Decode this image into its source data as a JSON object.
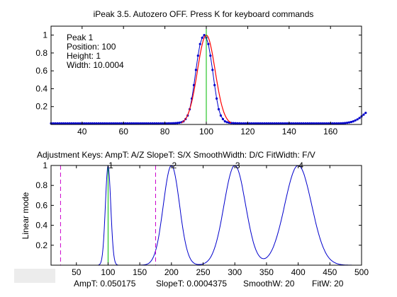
{
  "chart_data": [
    {
      "type": "scatter",
      "title": "iPeak 3.5. Autozero OFF. Press K for keyboard commands",
      "info": {
        "peak": "Peak 1",
        "position": "Position: 100",
        "height": "Height: 1",
        "width": "Width: 10.0004"
      },
      "xlim": [
        25,
        175
      ],
      "ylim": [
        0,
        1.1
      ],
      "xticks": [
        "40",
        "60",
        "80",
        "100",
        "120",
        "140",
        "160"
      ],
      "yticks": [
        "0.2",
        "0.4",
        "0.6",
        "0.8",
        "1"
      ],
      "grid": false,
      "peak_marker_x": 100,
      "fit_center": 100,
      "fit_width": 10,
      "series": [
        {
          "label_color": "#0000cc",
          "style": "dotted-line",
          "x_start": 25,
          "x_step": 1,
          "values": [
            0.012,
            0.012,
            0.012,
            0.012,
            0.012,
            0.012,
            0.012,
            0.012,
            0.012,
            0.012,
            0.012,
            0.012,
            0.012,
            0.012,
            0.012,
            0.012,
            0.012,
            0.012,
            0.012,
            0.012,
            0.012,
            0.012,
            0.012,
            0.012,
            0.012,
            0.012,
            0.012,
            0.012,
            0.012,
            0.012,
            0.012,
            0.012,
            0.012,
            0.012,
            0.012,
            0.012,
            0.012,
            0.012,
            0.012,
            0.012,
            0.012,
            0.012,
            0.012,
            0.012,
            0.012,
            0.012,
            0.012,
            0.012,
            0.012,
            0.012,
            0.012,
            0.012,
            0.012,
            0.012,
            0.012,
            0.012,
            0.012,
            0.013,
            0.013,
            0.014,
            0.015,
            0.017,
            0.02,
            0.025,
            0.035,
            0.06,
            0.1,
            0.17,
            0.29,
            0.44,
            0.61,
            0.77,
            0.9,
            0.97,
            1.0,
            0.97,
            0.9,
            0.77,
            0.61,
            0.44,
            0.29,
            0.17,
            0.1,
            0.06,
            0.035,
            0.025,
            0.02,
            0.017,
            0.015,
            0.014,
            0.013,
            0.013,
            0.012,
            0.012,
            0.012,
            0.012,
            0.012,
            0.012,
            0.012,
            0.012,
            0.012,
            0.012,
            0.012,
            0.012,
            0.012,
            0.012,
            0.012,
            0.012,
            0.012,
            0.012,
            0.012,
            0.012,
            0.012,
            0.012,
            0.012,
            0.012,
            0.012,
            0.012,
            0.012,
            0.012,
            0.012,
            0.012,
            0.012,
            0.012,
            0.012,
            0.012,
            0.012,
            0.012,
            0.012,
            0.012,
            0.012,
            0.012,
            0.012,
            0.012,
            0.012,
            0.012,
            0.012,
            0.012,
            0.012,
            0.012,
            0.013,
            0.014,
            0.016,
            0.019,
            0.023,
            0.028,
            0.035,
            0.045,
            0.057,
            0.072,
            0.09,
            0.11,
            0.13
          ]
        }
      ],
      "colors": {
        "data": "#0000cc",
        "fit": "#ff0000",
        "marker": "#00bb00"
      }
    },
    {
      "type": "line",
      "title": "Adjustment Keys:   AmpT: A/Z    SlopeT: S/X    SmoothWidth: D/C     FitWidth: F/V",
      "ylabel": "Linear mode",
      "xlim": [
        10,
        500
      ],
      "ylim": [
        0,
        1
      ],
      "xticks": [
        "50",
        "100",
        "150",
        "200",
        "250",
        "300",
        "350",
        "400",
        "450",
        "500"
      ],
      "yticks": [
        "0.2",
        "0.4",
        "0.6",
        "0.8",
        "1"
      ],
      "grid": false,
      "peak_labels": [
        {
          "text": "1",
          "x": 100
        },
        {
          "text": "2",
          "x": 200
        },
        {
          "text": "3",
          "x": 300
        },
        {
          "text": "4",
          "x": 400
        }
      ],
      "zoom_bounds_x": [
        25,
        175
      ],
      "peak_marker_x": 100,
      "series": [
        {
          "label_color": "#0000cc",
          "peaks": [
            {
              "center": 100,
              "height": 1.0,
              "width": 10
            },
            {
              "center": 200,
              "height": 1.0,
              "width": 30
            },
            {
              "center": 300,
              "height": 1.0,
              "width": 40
            },
            {
              "center": 400,
              "height": 1.0,
              "width": 50
            }
          ]
        }
      ],
      "colors": {
        "data": "#0000cc",
        "marker": "#00bb00",
        "bounds": "#cc00cc"
      }
    }
  ],
  "status_line": {
    "ampt": "AmpT: 0.050175",
    "slopet": "SlopeT: 0.0004375",
    "smoothw": "SmoothW: 20",
    "fitw": "FitW: 20"
  }
}
